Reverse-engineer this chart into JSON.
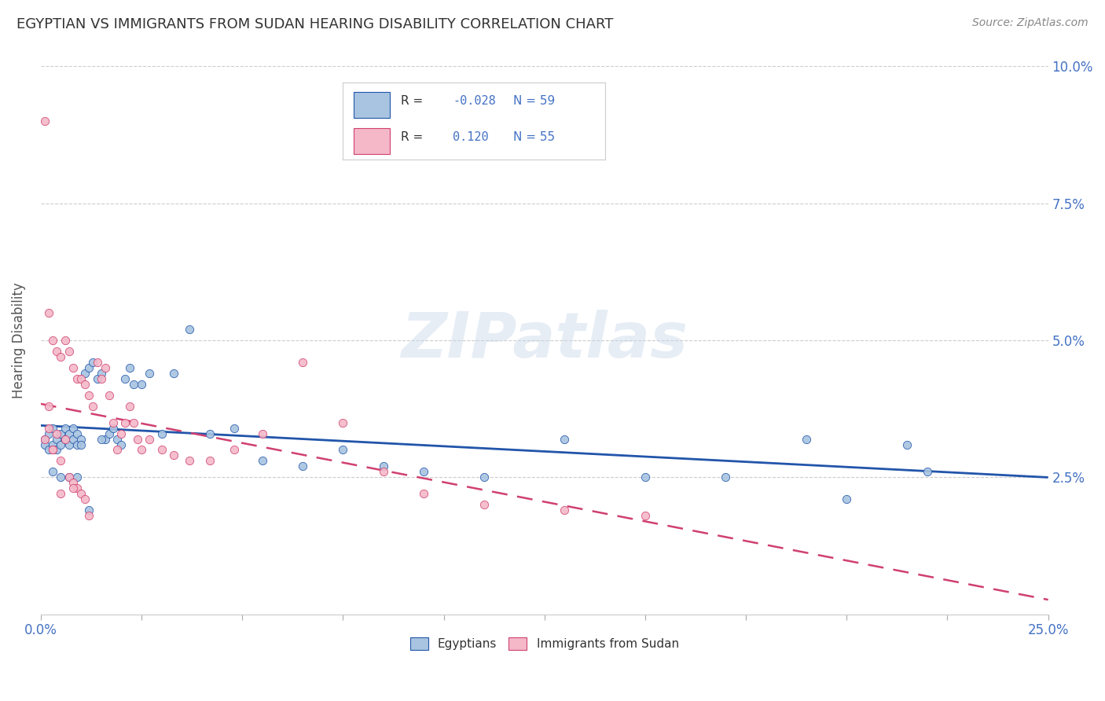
{
  "title": "EGYPTIAN VS IMMIGRANTS FROM SUDAN HEARING DISABILITY CORRELATION CHART",
  "source": "Source: ZipAtlas.com",
  "ylabel_label": "Hearing Disability",
  "xlim": [
    0.0,
    0.25
  ],
  "ylim": [
    0.0,
    0.1
  ],
  "egyptians_color": "#a8c4e0",
  "sudan_color": "#f4b8c8",
  "egyptians_line_color": "#2255aa",
  "sudan_line_color": "#d04070",
  "r_egypt": -0.028,
  "n_egypt": 59,
  "r_sudan": 0.12,
  "n_sudan": 55,
  "watermark": "ZIPatlas",
  "legend_labels": [
    "Egyptians",
    "Immigrants from Sudan"
  ],
  "egyptians_x": [
    0.001,
    0.001,
    0.002,
    0.002,
    0.003,
    0.003,
    0.004,
    0.004,
    0.005,
    0.005,
    0.006,
    0.006,
    0.007,
    0.007,
    0.008,
    0.008,
    0.009,
    0.009,
    0.01,
    0.01,
    0.011,
    0.012,
    0.013,
    0.014,
    0.015,
    0.016,
    0.017,
    0.018,
    0.019,
    0.02,
    0.021,
    0.022,
    0.023,
    0.025,
    0.027,
    0.03,
    0.033,
    0.037,
    0.042,
    0.048,
    0.055,
    0.065,
    0.075,
    0.085,
    0.095,
    0.11,
    0.13,
    0.15,
    0.17,
    0.19,
    0.2,
    0.215,
    0.22,
    0.003,
    0.005,
    0.007,
    0.009,
    0.012,
    0.015
  ],
  "egyptians_y": [
    0.032,
    0.031,
    0.033,
    0.03,
    0.034,
    0.031,
    0.032,
    0.03,
    0.033,
    0.031,
    0.032,
    0.034,
    0.033,
    0.031,
    0.032,
    0.034,
    0.033,
    0.031,
    0.032,
    0.031,
    0.044,
    0.045,
    0.046,
    0.043,
    0.044,
    0.032,
    0.033,
    0.034,
    0.032,
    0.031,
    0.043,
    0.045,
    0.042,
    0.042,
    0.044,
    0.033,
    0.044,
    0.052,
    0.033,
    0.034,
    0.028,
    0.027,
    0.03,
    0.027,
    0.026,
    0.025,
    0.032,
    0.025,
    0.025,
    0.032,
    0.021,
    0.031,
    0.026,
    0.026,
    0.025,
    0.025,
    0.025,
    0.019,
    0.032
  ],
  "sudan_x": [
    0.001,
    0.001,
    0.002,
    0.002,
    0.003,
    0.003,
    0.004,
    0.004,
    0.005,
    0.005,
    0.006,
    0.006,
    0.007,
    0.007,
    0.008,
    0.008,
    0.009,
    0.009,
    0.01,
    0.01,
    0.011,
    0.011,
    0.012,
    0.013,
    0.014,
    0.015,
    0.016,
    0.017,
    0.018,
    0.019,
    0.02,
    0.021,
    0.022,
    0.023,
    0.024,
    0.025,
    0.027,
    0.03,
    0.033,
    0.037,
    0.042,
    0.048,
    0.055,
    0.065,
    0.075,
    0.085,
    0.095,
    0.11,
    0.13,
    0.15,
    0.002,
    0.003,
    0.005,
    0.008,
    0.012
  ],
  "sudan_y": [
    0.09,
    0.032,
    0.055,
    0.038,
    0.05,
    0.03,
    0.048,
    0.033,
    0.047,
    0.028,
    0.05,
    0.032,
    0.048,
    0.025,
    0.045,
    0.024,
    0.043,
    0.023,
    0.043,
    0.022,
    0.042,
    0.021,
    0.04,
    0.038,
    0.046,
    0.043,
    0.045,
    0.04,
    0.035,
    0.03,
    0.033,
    0.035,
    0.038,
    0.035,
    0.032,
    0.03,
    0.032,
    0.03,
    0.029,
    0.028,
    0.028,
    0.03,
    0.033,
    0.046,
    0.035,
    0.026,
    0.022,
    0.02,
    0.019,
    0.018,
    0.034,
    0.03,
    0.022,
    0.023,
    0.018
  ]
}
